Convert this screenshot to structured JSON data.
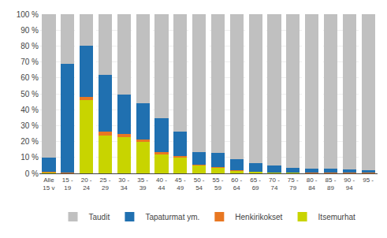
{
  "chart_data": {
    "type": "bar",
    "stacked": true,
    "categories": [
      "Alle\n15 v",
      "15 -\n19",
      "20 -\n24",
      "25 -\n29",
      "30 -\n34",
      "35 -\n39",
      "40 -\n44",
      "45 -\n49",
      "50 -\n54",
      "55 -\n59",
      "60 -\n64",
      "65 -\n69",
      "70 -\n74",
      "75 -\n79",
      "80 -\n84",
      "85 -\n89",
      "90 -\n94",
      "95 -"
    ],
    "series": [
      {
        "name": "Itsemurhat",
        "color": "#c8d400",
        "values": [
          0.5,
          0.0,
          46.0,
          24.0,
          23.0,
          20.0,
          12.0,
          10.0,
          5.0,
          3.5,
          1.5,
          1.0,
          0.5,
          0.5,
          0.3,
          0.3,
          0.3,
          0.2
        ]
      },
      {
        "name": "Henkirikokset",
        "color": "#e87722",
        "values": [
          0.3,
          0.5,
          2.0,
          2.0,
          2.0,
          1.5,
          1.5,
          1.0,
          0.5,
          0.5,
          0.3,
          0.2,
          0.2,
          0.2,
          0.1,
          0.1,
          0.1,
          0.1
        ]
      },
      {
        "name": "Tapaturmat ym.",
        "color": "#2070b0",
        "values": [
          9.2,
          68.5,
          32.0,
          36.0,
          24.5,
          22.5,
          21.0,
          15.0,
          8.0,
          9.0,
          7.0,
          5.0,
          4.5,
          3.0,
          2.5,
          2.5,
          2.0,
          1.5
        ]
      },
      {
        "name": "Taudit",
        "color": "#c0c0c0",
        "values": [
          90.0,
          31.0,
          20.0,
          38.0,
          50.5,
          56.0,
          65.5,
          74.0,
          86.5,
          87.0,
          91.2,
          93.8,
          94.8,
          96.3,
          97.1,
          97.1,
          97.6,
          98.2
        ]
      }
    ],
    "ylim": [
      0,
      100
    ],
    "yticks": [
      {
        "value": 0,
        "label": "0 %"
      },
      {
        "value": 10,
        "label": "10 %"
      },
      {
        "value": 20,
        "label": "20 %"
      },
      {
        "value": 30,
        "label": "30 %"
      },
      {
        "value": 40,
        "label": "40 %"
      },
      {
        "value": 50,
        "label": "50 %"
      },
      {
        "value": 60,
        "label": "60 %"
      },
      {
        "value": 70,
        "label": "70 %"
      },
      {
        "value": 80,
        "label": "80 %"
      },
      {
        "value": 90,
        "label": "90 %"
      },
      {
        "value": 100,
        "label": "100 %"
      }
    ],
    "grid": true,
    "legend": "bottom"
  }
}
